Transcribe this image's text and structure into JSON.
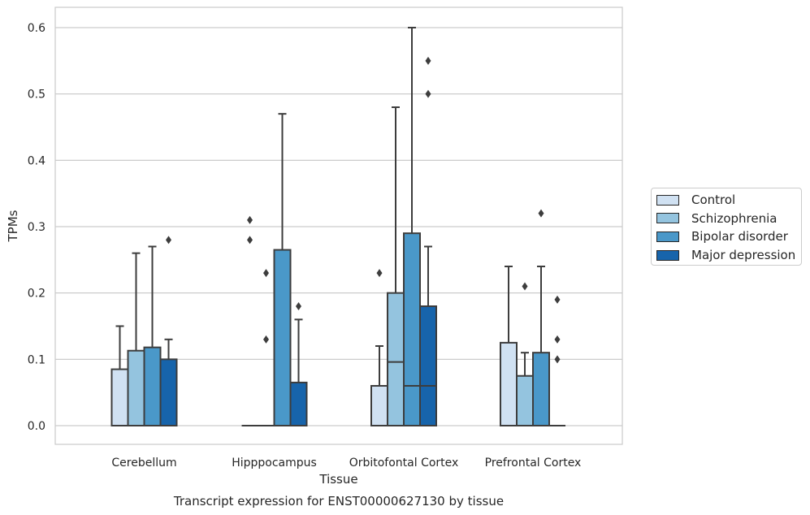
{
  "chart_data": {
    "type": "box",
    "title": "Transcript expression for ENST00000627130 by tissue",
    "xlabel": "Tissue",
    "ylabel": "TPMs",
    "ylim": [
      -0.03,
      0.63
    ],
    "yticks": [
      "0.0",
      "0.1",
      "0.2",
      "0.3",
      "0.4",
      "0.5",
      "0.6"
    ],
    "grid": true,
    "legend_position": "right",
    "categories": [
      "Cerebellum",
      "Hipppocampus",
      "Orbitofontal Cortex",
      "Prefrontal Cortex"
    ],
    "series": [
      {
        "name": "Control",
        "color": "#d0e1f2",
        "boxes": [
          {
            "q1": 0.0,
            "median": 0.0,
            "q3": 0.085,
            "whisker_low": 0.0,
            "whisker_high": 0.15,
            "outliers": []
          },
          {
            "q1": 0.0,
            "median": 0.0,
            "q3": 0.0,
            "whisker_low": 0.0,
            "whisker_high": 0.0,
            "outliers": [
              0.28,
              0.31
            ]
          },
          {
            "q1": 0.0,
            "median": 0.0,
            "q3": 0.06,
            "whisker_low": 0.0,
            "whisker_high": 0.12,
            "outliers": [
              0.23
            ]
          },
          {
            "q1": 0.0,
            "median": 0.0,
            "q3": 0.125,
            "whisker_low": 0.0,
            "whisker_high": 0.24,
            "outliers": []
          }
        ]
      },
      {
        "name": "Schizophrenia",
        "color": "#94c4df",
        "boxes": [
          {
            "q1": 0.0,
            "median": 0.0,
            "q3": 0.113,
            "whisker_low": 0.0,
            "whisker_high": 0.26,
            "outliers": []
          },
          {
            "q1": 0.0,
            "median": 0.0,
            "q3": 0.0,
            "whisker_low": 0.0,
            "whisker_high": 0.0,
            "outliers": [
              0.13,
              0.23
            ]
          },
          {
            "q1": 0.0,
            "median": 0.096,
            "q3": 0.2,
            "whisker_low": 0.0,
            "whisker_high": 0.48,
            "outliers": []
          },
          {
            "q1": 0.0,
            "median": 0.0,
            "q3": 0.075,
            "whisker_low": 0.0,
            "whisker_high": 0.11,
            "outliers": [
              0.21
            ]
          }
        ]
      },
      {
        "name": "Bipolar disorder",
        "color": "#4a98c9",
        "boxes": [
          {
            "q1": 0.0,
            "median": 0.0,
            "q3": 0.118,
            "whisker_low": 0.0,
            "whisker_high": 0.27,
            "outliers": []
          },
          {
            "q1": 0.0,
            "median": 0.0,
            "q3": 0.265,
            "whisker_low": 0.0,
            "whisker_high": 0.47,
            "outliers": []
          },
          {
            "q1": 0.0,
            "median": 0.06,
            "q3": 0.29,
            "whisker_low": 0.0,
            "whisker_high": 0.6,
            "outliers": []
          },
          {
            "q1": 0.0,
            "median": 0.0,
            "q3": 0.11,
            "whisker_low": 0.0,
            "whisker_high": 0.24,
            "outliers": [
              0.32
            ]
          }
        ]
      },
      {
        "name": "Major depression",
        "color": "#1764ab",
        "boxes": [
          {
            "q1": 0.0,
            "median": 0.0,
            "q3": 0.1,
            "whisker_low": 0.0,
            "whisker_high": 0.13,
            "outliers": [
              0.28
            ]
          },
          {
            "q1": 0.0,
            "median": 0.0,
            "q3": 0.065,
            "whisker_low": 0.0,
            "whisker_high": 0.16,
            "outliers": [
              0.18
            ]
          },
          {
            "q1": 0.0,
            "median": 0.06,
            "q3": 0.18,
            "whisker_low": 0.0,
            "whisker_high": 0.27,
            "outliers": [
              0.5,
              0.55
            ]
          },
          {
            "q1": 0.0,
            "median": 0.0,
            "q3": 0.0,
            "whisker_low": 0.0,
            "whisker_high": 0.0,
            "outliers": [
              0.1,
              0.13,
              0.19
            ]
          }
        ]
      }
    ]
  }
}
